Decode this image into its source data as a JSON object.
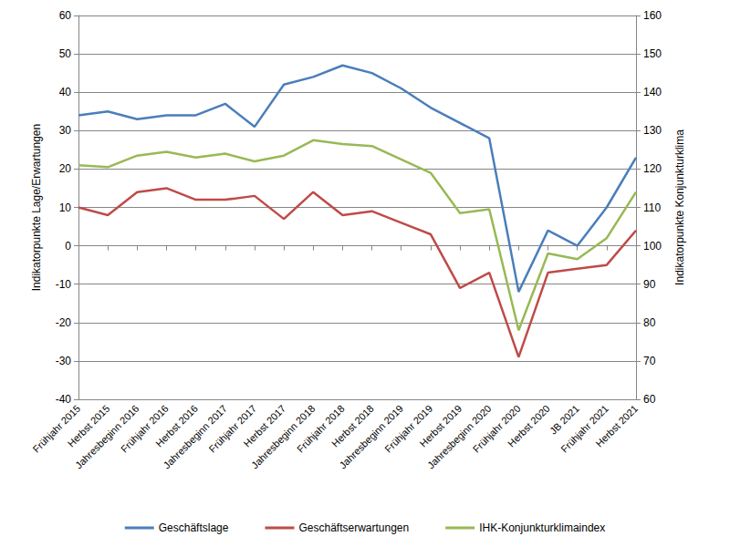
{
  "chart_data": {
    "type": "line",
    "y_label": "Indikatorpunkte Lage/Erwartungen",
    "y2_label": "Indikatorpunkte Konjunkturklima",
    "categories": [
      "Frühjahr 2015",
      "Herbst 2015",
      "Jahresbeginn 2016",
      "Frühjahr 2016",
      "Herbst 2016",
      "Jahresbeginn 2017",
      "Frühjahr 2017",
      "Herbst 2017",
      "Jahresbeginn 2018",
      "Frühjahr 2018",
      "Herbst 2018",
      "Jahresbeginn 2019",
      "Frühjahr 2019",
      "Herbst 2019",
      "Jahresbeginn 2020",
      "Frühjahr 2020",
      "Herbst 2020",
      "JB 2021",
      "Frühjahr 2021",
      "Herbst 2021"
    ],
    "series": [
      {
        "name": "Geschäftslage",
        "color": "#4a7ebb",
        "values": [
          34,
          35,
          33,
          34,
          34,
          37,
          31,
          42,
          44,
          47,
          45,
          41,
          36,
          32,
          28,
          -12,
          4,
          0,
          10,
          23
        ]
      },
      {
        "name": "Geschäftserwartungen",
        "color": "#be4b48",
        "values": [
          10,
          8,
          14,
          15,
          12,
          12,
          13,
          7,
          14,
          8,
          9,
          6,
          3,
          -11,
          -7,
          -29,
          -7,
          -6,
          -5,
          4
        ]
      },
      {
        "name": "IHK-Konjunkturklimaindex",
        "color": "#98b954",
        "axis": "y2",
        "values": [
          121,
          120.5,
          123.5,
          124.5,
          123,
          124,
          122,
          123.5,
          127.5,
          126.5,
          126,
          122.5,
          119,
          108.5,
          109.5,
          78,
          98,
          96.5,
          102,
          114
        ]
      }
    ],
    "ylim": [
      -40,
      60
    ],
    "yticks": [
      -40,
      -30,
      -20,
      -10,
      0,
      10,
      20,
      30,
      40,
      50,
      60
    ],
    "y2lim": [
      60,
      160
    ],
    "y2ticks": [
      60,
      70,
      80,
      90,
      100,
      110,
      120,
      130,
      140,
      150,
      160
    ],
    "grid": true,
    "legend": "bottom",
    "marker": "none"
  }
}
